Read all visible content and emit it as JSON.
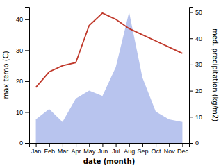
{
  "chart_data": {
    "type": "line",
    "categories": [
      "Jan",
      "Feb",
      "Mar",
      "Apr",
      "May",
      "Jun",
      "Jul",
      "Aug",
      "Sep",
      "Oct",
      "Nov",
      "Dec"
    ],
    "xlabel": "date (month)",
    "ylabel": "max temp (C)",
    "y2label": "med. precipitation (kg/m2)",
    "series": [
      {
        "type": "area",
        "axis": "y2",
        "color": "#b8c4ee",
        "values": [
          9,
          13,
          8,
          17,
          20,
          18,
          29,
          50,
          25,
          12,
          9,
          8
        ]
      },
      {
        "type": "line",
        "color": "#c0392b",
        "values": [
          18,
          23,
          25,
          26,
          38,
          42,
          40,
          37,
          35,
          33,
          31,
          29
        ]
      }
    ],
    "ylim": [
      0,
      44
    ],
    "yticks": [
      0,
      10,
      20,
      30,
      40
    ],
    "y2lim": [
      0,
      52
    ],
    "y2ticks": [
      0,
      10,
      20,
      30,
      40,
      50
    ],
    "grid": false
  }
}
